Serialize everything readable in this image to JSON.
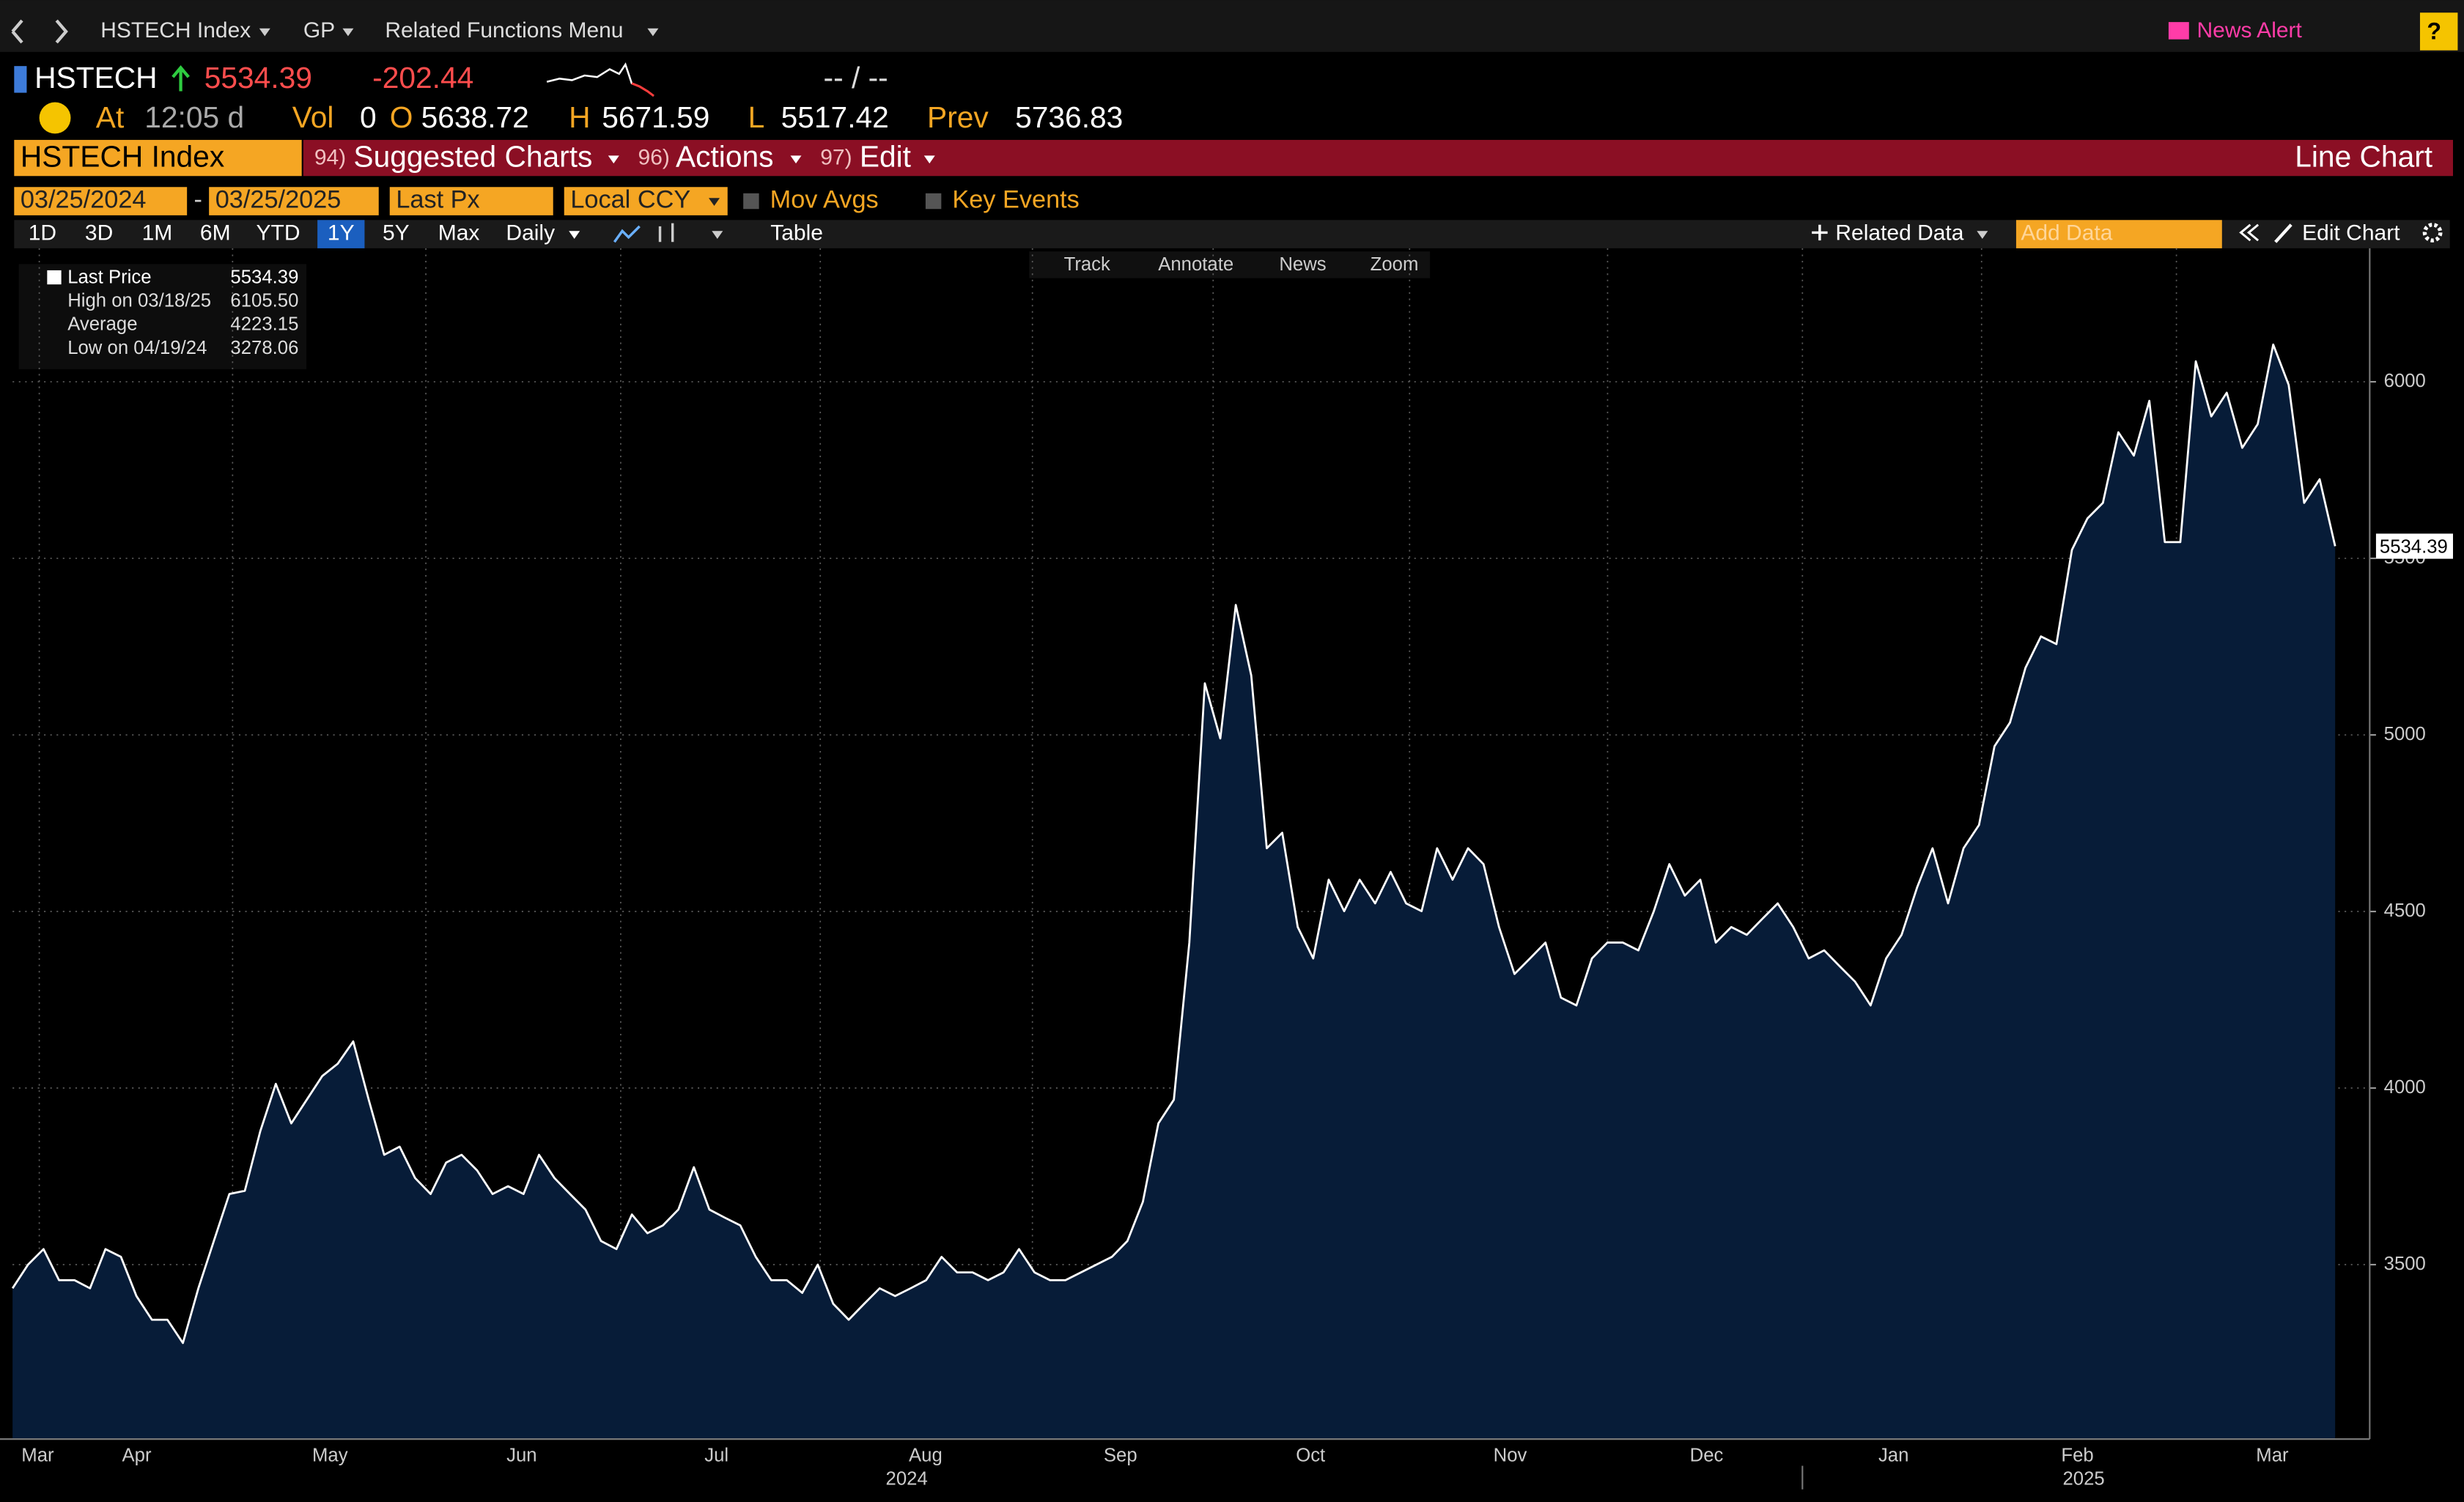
{
  "nav": {
    "security": "HSTECH Index",
    "gp": "GP",
    "menu": "Related Functions Menu",
    "news_alert": "News Alert",
    "help": "?"
  },
  "quote": {
    "ticker": "HSTECH",
    "last": "5534.39",
    "change": "-202.44",
    "bid_ask": "-- / --",
    "at_label": "At",
    "time": "12:05 d",
    "vol_label": "Vol",
    "volume": "0",
    "open_label": "O",
    "open": "5638.72",
    "high_label": "H",
    "high": "5671.59",
    "low_label": "L",
    "low": "5517.42",
    "prev_label": "Prev",
    "prev": "5736.83"
  },
  "toolbar": {
    "security": "HSTECH Index",
    "suggested_code": "94)",
    "suggested": "Suggested Charts",
    "actions_code": "96)",
    "actions": "Actions",
    "edit_code": "97)",
    "edit": "Edit",
    "chart_type": "Line Chart"
  },
  "controls": {
    "start_date": "03/25/2024",
    "separator": "-",
    "end_date": "03/25/2025",
    "field": "Last Px",
    "currency": "Local CCY",
    "mov_avgs": "Mov Avgs",
    "key_events": "Key Events",
    "periods": [
      "1D",
      "3D",
      "1M",
      "6M",
      "YTD",
      "1Y",
      "5Y",
      "Max"
    ],
    "frequency": "Daily",
    "table": "Table",
    "related_data": "Related Data",
    "add_data": "Add Data",
    "edit_chart": "Edit Chart"
  },
  "chart_tools": [
    "Track",
    "Annotate",
    "News",
    "Zoom"
  ],
  "legend_stats": [
    {
      "label": "High on 03/18/25",
      "value": "6105.50"
    },
    {
      "label": "Average",
      "value": "4223.15"
    },
    {
      "label": "Low on 04/19/24",
      "value": "3278.06"
    }
  ],
  "chart_data": {
    "type": "line",
    "x_labels": [
      "Mar",
      "Apr",
      "May",
      "Jun",
      "Jul",
      "Aug",
      "Sep",
      "Oct",
      "Nov",
      "Dec",
      "Jan",
      "Feb",
      "Mar"
    ],
    "year_labels": [
      "2024",
      "2025"
    ],
    "series": [
      {
        "name": "Last Price",
        "color": "#ffffff",
        "values": [
          3433,
          3500,
          3544,
          3456,
          3456,
          3433,
          3544,
          3522,
          3411,
          3344,
          3344,
          3278.06,
          3433,
          3567,
          3700,
          3709,
          3878,
          4012,
          3900,
          3967,
          4034,
          4069,
          4132,
          3967,
          3811,
          3834,
          3745,
          3700,
          3789,
          3811,
          3767,
          3700,
          3722,
          3700,
          3811,
          3745,
          3700,
          3656,
          3567,
          3544,
          3642,
          3589,
          3611,
          3656,
          3776,
          3656,
          3633,
          3611,
          3522,
          3456,
          3456,
          3420,
          3500,
          3389,
          3344,
          3389,
          3433,
          3411,
          3433,
          3456,
          3522,
          3478,
          3478,
          3456,
          3478,
          3544,
          3478,
          3456,
          3456,
          3478,
          3500,
          3522,
          3567,
          3678,
          3900,
          3967,
          4412,
          5146,
          4990,
          5368,
          5168,
          4679,
          4723,
          4456,
          4367,
          4590,
          4501,
          4590,
          4523,
          4612,
          4523,
          4501,
          4679,
          4590,
          4679,
          4634,
          4456,
          4323,
          4367,
          4412,
          4256,
          4234,
          4367,
          4412,
          4412,
          4390,
          4501,
          4634,
          4545,
          4590,
          4412,
          4456,
          4434,
          4479,
          4523,
          4456,
          4367,
          4390,
          4345,
          4301,
          4234,
          4367,
          4434,
          4568,
          4679,
          4523,
          4679,
          4745,
          4968,
          5035,
          5190,
          5279,
          5257,
          5524,
          5613,
          5657,
          5857,
          5791,
          5946,
          5546,
          5546,
          6058,
          5902,
          5969,
          5813,
          5880,
          6105.5,
          5991,
          5657,
          5724,
          5534.39
        ]
      }
    ],
    "area_color": "#071c38",
    "ylim": [
      3006,
      6378
    ],
    "yticks": [
      3500,
      4000,
      4500,
      5000,
      5500,
      6000
    ],
    "grid": true
  }
}
